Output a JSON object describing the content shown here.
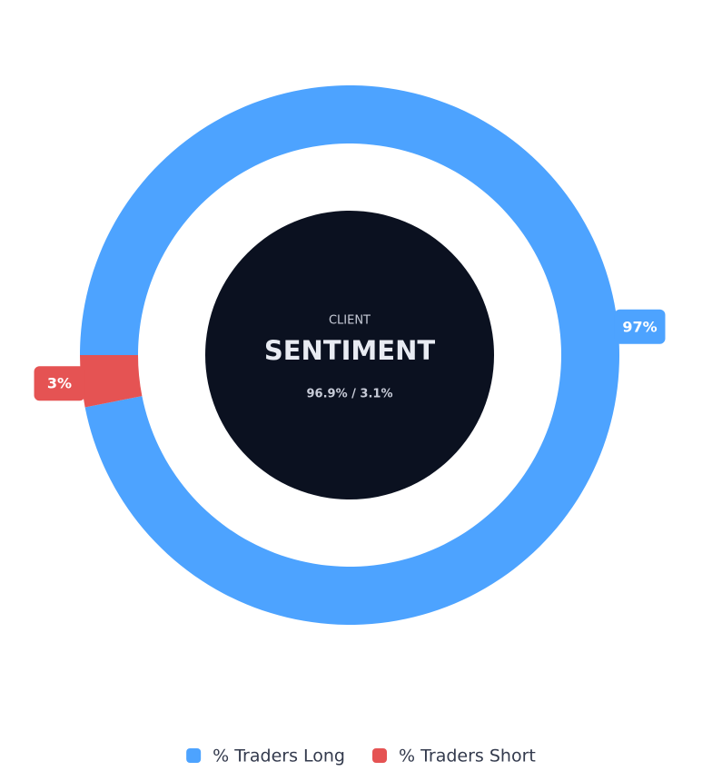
{
  "chart_data": {
    "type": "pie",
    "center_label": "CLIENT",
    "title": "SENTIMENT",
    "subtitle": "96.9% / 3.1%",
    "labels": [
      "% Traders Long",
      "% Traders Short"
    ],
    "values": [
      96.9,
      3.1
    ],
    "value_labels": [
      "97%",
      "3%"
    ],
    "colors": [
      "#4da3ff",
      "#e55353"
    ],
    "legend": "bottom"
  }
}
